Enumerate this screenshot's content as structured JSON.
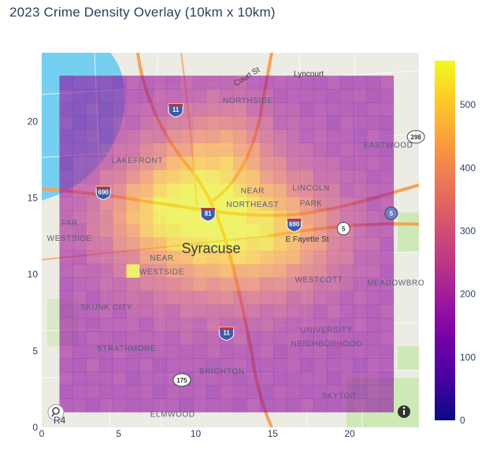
{
  "chart_data": {
    "type": "heatmap",
    "title": "2023 Crime Density Overlay (10km x 10km)",
    "xlim": [
      0,
      24.5
    ],
    "ylim": [
      0,
      24.5
    ],
    "x_ticks": [
      0,
      5,
      10,
      15,
      20
    ],
    "y_ticks": [
      0,
      5,
      10,
      15,
      20
    ],
    "grid_extent": {
      "x0": 1.15,
      "x1": 22.85,
      "y0": 1.0,
      "y1": 23.0
    },
    "grid_size": 25,
    "colorscale": "plasma",
    "zmin": 0,
    "zmax": 570,
    "colorbar_ticks": [
      0,
      100,
      200,
      300,
      400,
      500
    ],
    "baseline_value": 175,
    "hotspots": [
      {
        "cx": 11.5,
        "cy": 13.0,
        "sx": 4.2,
        "sy": 3.2,
        "amp": 330
      },
      {
        "cx": 9.5,
        "cy": 16.5,
        "sx": 2.4,
        "sy": 2.8,
        "amp": 150
      },
      {
        "cx": 6.5,
        "cy": 14.0,
        "sx": 2.2,
        "sy": 1.8,
        "amp": 110
      },
      {
        "cx": 16.0,
        "cy": 12.5,
        "sx": 2.8,
        "sy": 2.2,
        "amp": 120
      },
      {
        "cx": 12.5,
        "cy": 18.5,
        "sx": 1.8,
        "sy": 2.2,
        "amp": 110
      }
    ],
    "peak_cells": [
      {
        "x": 9.5,
        "y": 13.0,
        "value": 565
      },
      {
        "x": 6.0,
        "y": 10.0,
        "value": 560
      },
      {
        "x": 12.5,
        "y": 11.5,
        "value": 520
      }
    ]
  },
  "map": {
    "city": "Syracuse",
    "streets": [
      "Court St",
      "Lyncourt",
      "E Fayette St"
    ],
    "neighborhoods": [
      {
        "label": "NORTHSIDE",
        "x": 13.4,
        "y": 21.2
      },
      {
        "label": "EASTWOOD",
        "x": 22.5,
        "y": 18.3
      },
      {
        "label": "LAKEFRONT",
        "x": 6.2,
        "y": 17.3
      },
      {
        "label": "NEAR",
        "x": 13.7,
        "y": 15.3
      },
      {
        "label": "NORTHEAST",
        "x": 13.7,
        "y": 14.4
      },
      {
        "label": "LINCOLN",
        "x": 17.5,
        "y": 15.5
      },
      {
        "label": "PARK",
        "x": 17.5,
        "y": 14.5
      },
      {
        "label": "FAR",
        "x": 1.8,
        "y": 13.2
      },
      {
        "label": "WESTSIDE",
        "x": 1.8,
        "y": 12.2
      },
      {
        "label": "NEAR",
        "x": 7.8,
        "y": 10.9
      },
      {
        "label": "WESTSIDE",
        "x": 7.8,
        "y": 10.0
      },
      {
        "label": "WESTCOTT",
        "x": 18.0,
        "y": 9.5
      },
      {
        "label": "MEADOWBRO",
        "x": 23.0,
        "y": 9.3
      },
      {
        "label": "SKUNK CITY",
        "x": 4.2,
        "y": 7.7
      },
      {
        "label": "UNIVERSITY",
        "x": 18.5,
        "y": 6.2
      },
      {
        "label": "NEIGHBORHOOD",
        "x": 18.5,
        "y": 5.3
      },
      {
        "label": "STRATHMORE",
        "x": 5.5,
        "y": 5.0
      },
      {
        "label": "BRIGHTON",
        "x": 11.7,
        "y": 3.5
      },
      {
        "label": "SKYTOP",
        "x": 19.3,
        "y": 1.9
      },
      {
        "label": "ELMWOOD",
        "x": 8.5,
        "y": 0.7
      }
    ],
    "shields": [
      {
        "label": "11",
        "x": 8.7,
        "y": 20.8,
        "kind": "interstate"
      },
      {
        "label": "690",
        "x": 4.0,
        "y": 15.4,
        "kind": "interstate"
      },
      {
        "label": "81",
        "x": 10.8,
        "y": 14.0,
        "kind": "interstate"
      },
      {
        "label": "690",
        "x": 16.4,
        "y": 13.3,
        "kind": "interstate"
      },
      {
        "label": "5",
        "x": 19.6,
        "y": 13.0,
        "kind": "state"
      },
      {
        "label": "5",
        "x": 22.7,
        "y": 14.0,
        "kind": "state-blue"
      },
      {
        "label": "11",
        "x": 12.0,
        "y": 6.2,
        "kind": "interstate"
      },
      {
        "label": "175",
        "x": 9.1,
        "y": 3.1,
        "kind": "state"
      },
      {
        "label": "298",
        "x": 24.3,
        "y": 19.0,
        "kind": "state"
      }
    ],
    "corner_stub": "R4"
  },
  "colors": {
    "water": "#75cff0",
    "land": "#ecebe4",
    "park": "#cde9b8",
    "road_major": "#f7a156",
    "road_minor": "#ffffff",
    "axis_text": "#2a3f5f",
    "info_button": "#333333"
  },
  "icons": {
    "bottom_left": "map-attribution-icon",
    "bottom_right": "info-icon"
  }
}
